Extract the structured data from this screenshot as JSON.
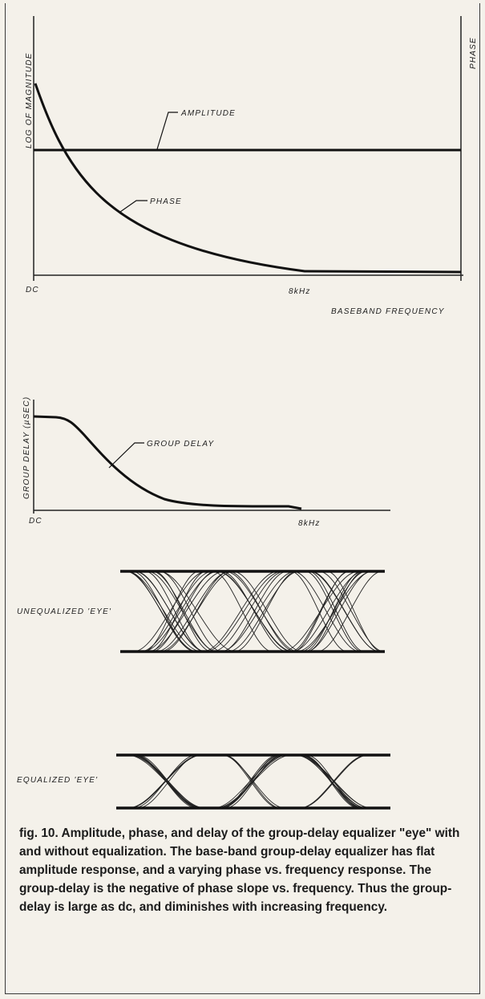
{
  "chart_data": [
    {
      "type": "line",
      "xlabel": "BASEBAND FREQUENCY",
      "ylabel": "LOG OF MAGNITUDE",
      "ylabel_right": "PHASE",
      "tick_labels": [
        "DC",
        "8kHz"
      ],
      "series": [
        {
          "name": "AMPLITUDE",
          "shape": "flat"
        },
        {
          "name": "PHASE",
          "shape": "decaying"
        }
      ]
    },
    {
      "type": "line",
      "ylabel": "GROUP DELAY (µSEC)",
      "tick_labels": [
        "DC",
        "8kHz"
      ],
      "series": [
        {
          "name": "GROUP DELAY",
          "shape": "high plateau falling to low level"
        }
      ]
    },
    {
      "type": "eye-diagram",
      "label": "UNEQUALIZED 'EYE'"
    },
    {
      "type": "eye-diagram",
      "label": "EQUALIZED 'EYE'"
    }
  ],
  "caption": "fig. 10. Amplitude, phase, and delay of the group-delay equalizer \"eye\" with and without equalization. The base-band group-delay equalizer has flat amplitude response, and a varying phase vs. frequency response. The group-delay is the negative of phase slope vs. frequency. Thus the group-delay is large as dc, and diminishes with increasing frequency."
}
